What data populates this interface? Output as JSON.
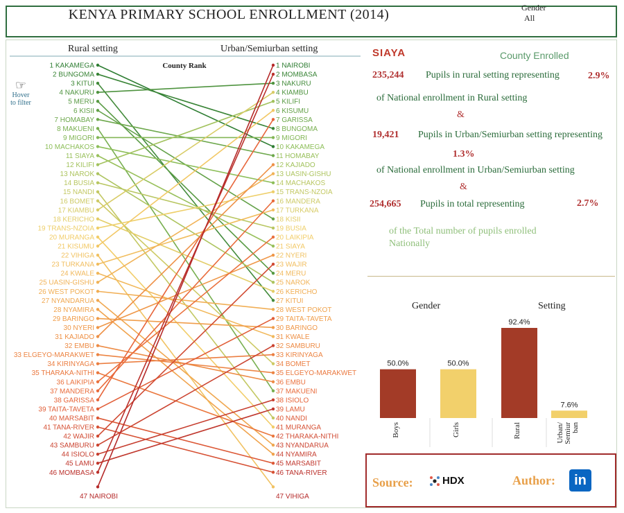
{
  "header": {
    "title": "KENYA PRIMARY SCHOOL ENROLLMENT (2014)",
    "gender_label": "Gender",
    "gender_value": "All"
  },
  "slope": {
    "left_header": "Rural setting",
    "right_header": "Urban/Semiurban setting",
    "mid_label": "County Rank",
    "hover_hint_1": "Hover",
    "hover_hint_2": "to filter"
  },
  "info": {
    "county": "SIAYA",
    "county_enrolled_label": "County Enrolled",
    "rural_pupils": "235,244",
    "rural_text": "Pupils in rural setting representing",
    "rural_pct": "2.9%",
    "rural_tail": "of National enrollment in Rural setting",
    "amp": "&",
    "urban_pupils": "19,421",
    "urban_text": "Pupils in Urban/Semiurban setting representing",
    "urban_pct": "1.3%",
    "urban_tail": "of National enrollment in Urban/Semiurban setting",
    "total_pupils": "254,665",
    "total_text": "Pupils in total representing",
    "total_pct": "2.7%",
    "total_tail_1": "of the Total number of pupils enrolled",
    "total_tail_2": "Nationally"
  },
  "footer": {
    "source_label": "Source:",
    "source_name": "HDX",
    "author_label": "Author:",
    "author_icon": "in"
  },
  "colors": {
    "rank_gradient": [
      "#2e7d32",
      "#8fbf5a",
      "#f2d06b",
      "#f0a04b",
      "#e8663a",
      "#b52a2a"
    ],
    "boys": "#a33b27",
    "girls": "#f2d06b",
    "rural": "#a33b27",
    "urban": "#f2d06b"
  },
  "chart_data": [
    {
      "type": "slope",
      "left_axis": "Rural setting",
      "right_axis": "Urban/Semiurban setting",
      "left_ranks": [
        "KAKAMEGA",
        "BUNGOMA",
        "KITUI",
        "NAKURU",
        "MERU",
        "KISII",
        "HOMABAY",
        "MAKUENI",
        "MIGORI",
        "MACHAKOS",
        "SIAYA",
        "KILIFI",
        "NAROK",
        "BUSIA",
        "NANDI",
        "BOMET",
        "KIAMBU",
        "KERICHO",
        "TRANS-NZOIA",
        "MURANGA",
        "KISUMU",
        "VIHIGA",
        "TURKANA",
        "KWALE",
        "UASIN-GISHU",
        "WEST POKOT",
        "NYANDARUA",
        "NYAMIRA",
        "BARINGO",
        "NYERI",
        "KAJIADO",
        "EMBU",
        "ELGEYO-MARAKWET",
        "KIRINYAGA",
        "THARAKA-NITHI",
        "LAIKIPIA",
        "MANDERA",
        "GARISSA",
        "TAITA-TAVETA",
        "MARSABIT",
        "TANA-RIVER",
        "WAJIR",
        "SAMBURU",
        "ISIOLO",
        "LAMU",
        "MOMBASA",
        "NAIROBI"
      ],
      "right_ranks": [
        "NAIROBI",
        "MOMBASA",
        "NAKURU",
        "KIAMBU",
        "KILIFI",
        "KISUMU",
        "GARISSA",
        "BUNGOMA",
        "MIGORI",
        "KAKAMEGA",
        "HOMABAY",
        "KAJIADO",
        "UASIN-GISHU",
        "MACHAKOS",
        "TRANS-NZOIA",
        "MANDERA",
        "TURKANA",
        "KISII",
        "BUSIA",
        "LAIKIPIA",
        "SIAYA",
        "NYERI",
        "WAJIR",
        "MERU",
        "NAROK",
        "KERICHO",
        "KITUI",
        "WEST POKOT",
        "TAITA-TAVETA",
        "BARINGO",
        "KWALE",
        "SAMBURU",
        "KIRINYAGA",
        "BOMET",
        "ELGEYO-MARAKWET",
        "EMBU",
        "MAKUENI",
        "ISIOLO",
        "LAMU",
        "NANDI",
        "MURANGA",
        "THARAKA-NITHI",
        "NYANDARUA",
        "NYAMIRA",
        "MARSABIT",
        "TANA-RIVER",
        "VIHIGA"
      ]
    },
    {
      "type": "bar",
      "title": "Gender",
      "categories": [
        "Boys",
        "Girls"
      ],
      "values": [
        50.0,
        50.0
      ],
      "labels": [
        "50.0%",
        "50.0%"
      ],
      "ylim": [
        0,
        100
      ]
    },
    {
      "type": "bar",
      "title": "Setting",
      "categories": [
        "Rural",
        "Urban/\nSemiur\nban"
      ],
      "values": [
        92.4,
        7.6
      ],
      "labels": [
        "92.4%",
        "7.6%"
      ],
      "ylim": [
        0,
        100
      ]
    }
  ]
}
